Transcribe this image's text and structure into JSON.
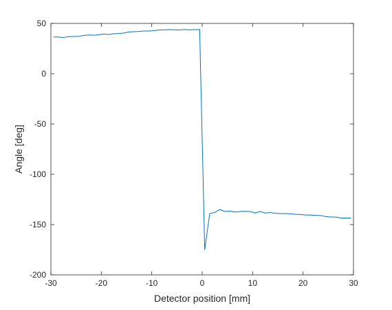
{
  "chart_data": {
    "type": "line",
    "title": "",
    "xlabel": "Detector position [mm]",
    "ylabel": "Angle [deg]",
    "xlim": [
      -30,
      30
    ],
    "ylim": [
      -200,
      50
    ],
    "xticks": [
      -30,
      -20,
      -10,
      0,
      10,
      20,
      30
    ],
    "yticks": [
      -200,
      -150,
      -100,
      -50,
      0,
      50
    ],
    "grid": false,
    "legend": "none",
    "series": [
      {
        "color": "#0072BD",
        "x": [
          -29.5,
          -28.5,
          -27.5,
          -26.5,
          -25.5,
          -24.5,
          -23.5,
          -22.5,
          -21.5,
          -20.5,
          -19.5,
          -18.5,
          -17.5,
          -16.5,
          -15.5,
          -14.5,
          -13.5,
          -12.5,
          -11.5,
          -10.5,
          -9.5,
          -8.5,
          -7.5,
          -6.5,
          -5.5,
          -4.5,
          -3.5,
          -2.5,
          -1.5,
          -0.5,
          0.5,
          1.5,
          2.5,
          3.5,
          4.5,
          5.5,
          6.5,
          7.5,
          8.5,
          9.5,
          10.5,
          11.5,
          12.5,
          13.5,
          14.5,
          15.5,
          16.5,
          17.5,
          18.5,
          19.5,
          20.5,
          21.5,
          22.5,
          23.5,
          24.5,
          25.5,
          26.5,
          27.5,
          28.5,
          29.5
        ],
        "y": [
          36.5,
          36.5,
          36.0,
          36.8,
          37.0,
          37.2,
          38.0,
          38.5,
          38.3,
          38.7,
          39.5,
          39.0,
          39.8,
          40.0,
          40.5,
          41.5,
          41.8,
          42.0,
          42.5,
          42.5,
          42.8,
          43.5,
          43.7,
          43.8,
          43.7,
          43.5,
          43.9,
          43.6,
          43.8,
          44.0,
          -175.0,
          -139.0,
          -138.0,
          -135.0,
          -137.0,
          -136.5,
          -137.5,
          -137.0,
          -136.8,
          -137.0,
          -138.5,
          -137.0,
          -138.5,
          -138.0,
          -138.8,
          -139.0,
          -139.0,
          -139.2,
          -139.8,
          -140.0,
          -140.5,
          -140.5,
          -140.8,
          -141.0,
          -142.0,
          -142.5,
          -142.5,
          -143.5,
          -143.5,
          -143.5
        ]
      }
    ]
  }
}
